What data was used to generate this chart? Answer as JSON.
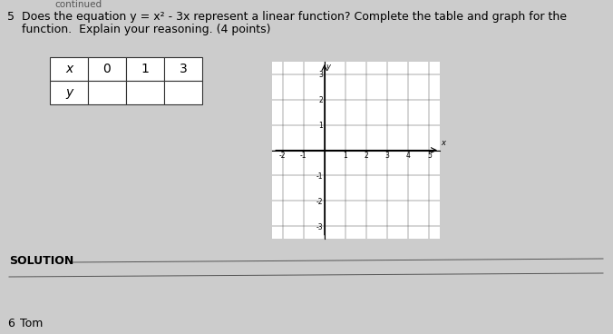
{
  "background_color": "#cccccc",
  "paper_color": "#d8d8d8",
  "question_number": "5",
  "question_text_line1": "Does the equation y = x² - 3x represent a linear function? Complete the table and graph for the",
  "question_text_line2": "function.  Explain your reasoning. (4 points)",
  "table_x_values": [
    "x",
    "0",
    "1",
    "3"
  ],
  "table_y_label": "y",
  "graph_xlim": [
    -2,
    5
  ],
  "graph_ylim": [
    -3,
    3
  ],
  "graph_xticks": [
    -2,
    -1,
    0,
    1,
    2,
    3,
    4,
    5
  ],
  "graph_yticks": [
    -3,
    -2,
    -1,
    0,
    1,
    2,
    3
  ],
  "solution_label": "SOLUTION",
  "next_number": "6",
  "next_label": "Tom"
}
